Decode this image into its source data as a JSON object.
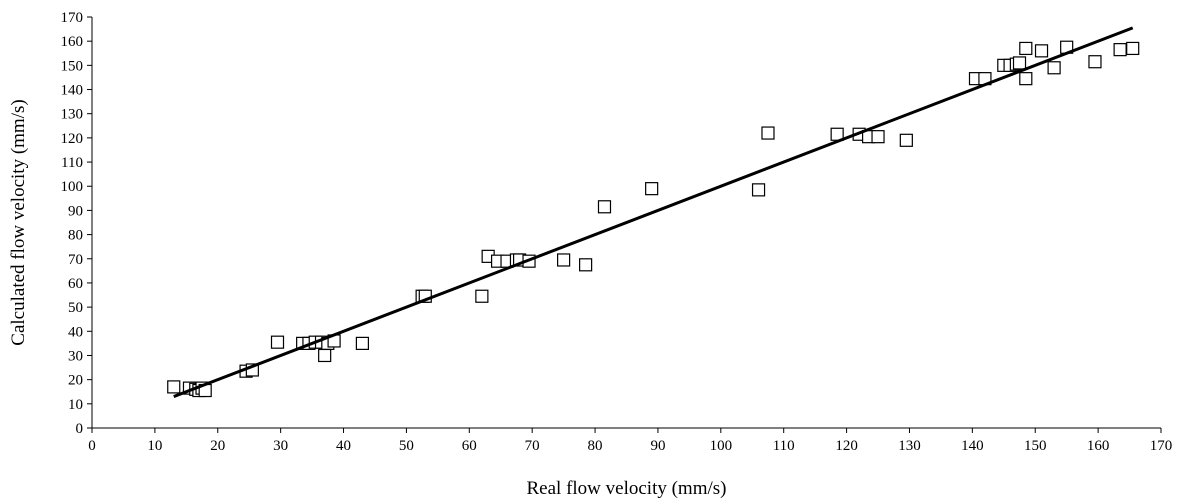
{
  "chart_data": {
    "type": "scatter",
    "title": "",
    "xlabel": "Real flow velocity (mm/s)",
    "ylabel": "Calculated flow velocity (mm/s)",
    "xlim": [
      0,
      170
    ],
    "ylim": [
      0,
      170
    ],
    "xticks": [
      0,
      10,
      20,
      30,
      40,
      50,
      60,
      70,
      80,
      90,
      100,
      110,
      120,
      130,
      140,
      150,
      160,
      170
    ],
    "yticks": [
      0,
      10,
      20,
      30,
      40,
      50,
      60,
      70,
      80,
      90,
      100,
      110,
      120,
      130,
      140,
      150,
      160,
      170
    ],
    "grid": false,
    "legend": "none",
    "marker": "open-square",
    "series": [
      {
        "points": [
          [
            13,
            17
          ],
          [
            15.5,
            16.5
          ],
          [
            16.5,
            16
          ],
          [
            17,
            15.5
          ],
          [
            17.5,
            16.5
          ],
          [
            18,
            15.5
          ],
          [
            24.5,
            23.5
          ],
          [
            25.5,
            24
          ],
          [
            29.5,
            35.5
          ],
          [
            33.5,
            35
          ],
          [
            34.5,
            35
          ],
          [
            35.5,
            35.5
          ],
          [
            36.5,
            35.5
          ],
          [
            37.5,
            35
          ],
          [
            38.5,
            36
          ],
          [
            37,
            30
          ],
          [
            43,
            35
          ],
          [
            52.5,
            54.5
          ],
          [
            53,
            54.5
          ],
          [
            62,
            54.5
          ],
          [
            63,
            71
          ],
          [
            64.5,
            69
          ],
          [
            66,
            69
          ],
          [
            67.5,
            69.5
          ],
          [
            68,
            69.5
          ],
          [
            69.5,
            69
          ],
          [
            75,
            69.5
          ],
          [
            78.5,
            67.5
          ],
          [
            81.5,
            91.5
          ],
          [
            89,
            99
          ],
          [
            106,
            98.5
          ],
          [
            107.5,
            122
          ],
          [
            118.5,
            121.5
          ],
          [
            122,
            121.5
          ],
          [
            123.5,
            120.5
          ],
          [
            125,
            120.5
          ],
          [
            129.5,
            119
          ],
          [
            140.5,
            144.5
          ],
          [
            142,
            144.5
          ],
          [
            145,
            150
          ],
          [
            146,
            150
          ],
          [
            147,
            150.5
          ],
          [
            147.5,
            151
          ],
          [
            148.5,
            157
          ],
          [
            148.5,
            144.5
          ],
          [
            151,
            156
          ],
          [
            153,
            149
          ],
          [
            155,
            157.5
          ],
          [
            159.5,
            151.5
          ],
          [
            163.5,
            156.5
          ],
          [
            165.5,
            157
          ]
        ]
      }
    ],
    "trendline": {
      "x": [
        13,
        165.5
      ],
      "y": [
        13,
        165.5
      ]
    }
  }
}
